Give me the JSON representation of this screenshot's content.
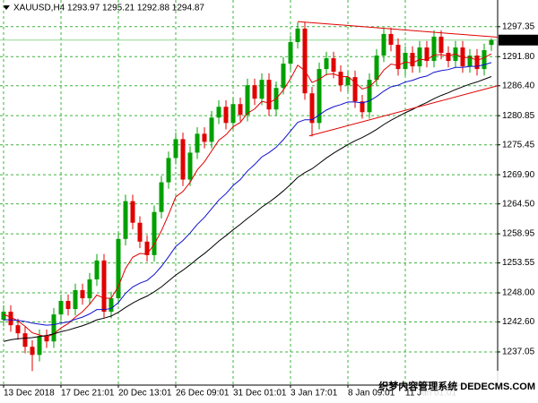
{
  "chart_data": {
    "type": "candlestick",
    "title": "XAUUSD,H4  1293.97 1295.21 1292.88 1294.87",
    "watermark": "织梦内容管理系统 DEDECMS.COM",
    "categories": [
      "13 Dec 2018",
      null,
      null,
      null,
      null,
      null,
      null,
      null,
      "17 Dec 21:01",
      null,
      null,
      null,
      null,
      null,
      null,
      null,
      "20 Dec 13:01",
      null,
      null,
      null,
      null,
      null,
      null,
      null,
      "26 Dec 09:01",
      null,
      null,
      null,
      null,
      null,
      null,
      null,
      "31 Dec 01:01",
      null,
      null,
      null,
      null,
      null,
      null,
      null,
      "3 Jan 17:01",
      null,
      null,
      null,
      null,
      null,
      null,
      null,
      "8 Jan 09:01",
      null,
      null,
      null,
      null,
      null,
      null,
      null,
      "11 Jan 01:01",
      null,
      null,
      null,
      null,
      null,
      null,
      null,
      null,
      null,
      null,
      null,
      null
    ],
    "open": [
      1243.0,
      1244.5,
      1242.0,
      1240.5,
      1238.0,
      1236.5,
      1240.0,
      1239.0,
      1244.0,
      1246.5,
      1245.0,
      1248.5,
      1247.0,
      1250.5,
      1254.0,
      1244.5,
      1247.0,
      1258.0,
      1265.0,
      1261.0,
      1257.5,
      1255.0,
      1263.0,
      1268.5,
      1273.0,
      1276.5,
      1269.0,
      1274.0,
      1277.5,
      1276.0,
      1280.5,
      1282.5,
      1279.5,
      1283.0,
      1281.0,
      1286.5,
      1284.0,
      1287.5,
      1282.0,
      1286.0,
      1290.5,
      1294.5,
      1297.0,
      1285.0,
      1279.5,
      1289.5,
      1291.5,
      1289.0,
      1286.5,
      1288.0,
      1283.5,
      1281.5,
      1287.5,
      1292.0,
      1296.0,
      1294.0,
      1289.5,
      1292.5,
      1290.0,
      1293.5,
      1291.0,
      1295.5,
      1292.5,
      1291.0,
      1293.5,
      1290.0,
      1292.0,
      1289.5,
      1293.97
    ],
    "high": [
      1245.7,
      1245.7,
      1243.2,
      1241.7,
      1239.2,
      1241.2,
      1241.2,
      1245.2,
      1247.7,
      1247.7,
      1249.7,
      1249.7,
      1251.7,
      1255.2,
      1255.2,
      1248.2,
      1259.2,
      1266.2,
      1266.2,
      1262.2,
      1258.7,
      1264.2,
      1269.7,
      1274.2,
      1277.7,
      1277.7,
      1275.2,
      1278.7,
      1278.7,
      1281.7,
      1283.7,
      1283.7,
      1284.2,
      1284.2,
      1287.7,
      1287.7,
      1288.7,
      1288.7,
      1287.2,
      1291.7,
      1295.7,
      1298.2,
      1298.2,
      1286.2,
      1290.7,
      1292.7,
      1292.7,
      1290.2,
      1289.2,
      1289.2,
      1284.7,
      1288.7,
      1293.2,
      1297.2,
      1297.2,
      1295.2,
      1293.7,
      1293.7,
      1294.7,
      1294.7,
      1296.7,
      1296.7,
      1293.7,
      1294.7,
      1294.7,
      1293.2,
      1293.2,
      1294.2,
      1295.21
    ],
    "low": [
      1241.8,
      1240.8,
      1239.3,
      1236.8,
      1233.5,
      1235.3,
      1237.8,
      1237.8,
      1242.8,
      1243.8,
      1243.8,
      1245.8,
      1245.8,
      1249.3,
      1243.3,
      1243.3,
      1245.8,
      1256.8,
      1259.8,
      1256.3,
      1253.8,
      1253.8,
      1261.8,
      1267.3,
      1271.8,
      1267.8,
      1267.8,
      1272.8,
      1274.8,
      1274.8,
      1279.3,
      1278.3,
      1278.3,
      1279.8,
      1279.8,
      1282.8,
      1282.8,
      1280.8,
      1280.8,
      1284.8,
      1289.3,
      1293.3,
      1283.8,
      1277.0,
      1278.3,
      1288.3,
      1287.8,
      1285.3,
      1285.3,
      1282.3,
      1280.3,
      1280.3,
      1286.3,
      1290.8,
      1292.8,
      1288.3,
      1288.3,
      1288.8,
      1288.8,
      1289.8,
      1289.8,
      1291.3,
      1289.8,
      1289.8,
      1288.8,
      1288.8,
      1288.3,
      1288.3,
      1292.88
    ],
    "close": [
      1244.5,
      1242.0,
      1240.5,
      1238.0,
      1236.5,
      1240.0,
      1239.0,
      1244.0,
      1246.5,
      1245.0,
      1248.5,
      1247.0,
      1250.5,
      1254.0,
      1244.5,
      1247.0,
      1258.0,
      1265.0,
      1261.0,
      1257.5,
      1255.0,
      1263.0,
      1268.5,
      1273.0,
      1276.5,
      1269.0,
      1274.0,
      1277.5,
      1276.0,
      1280.5,
      1282.5,
      1279.5,
      1283.0,
      1281.0,
      1286.5,
      1284.0,
      1287.5,
      1282.0,
      1286.0,
      1290.5,
      1294.5,
      1297.0,
      1285.0,
      1279.5,
      1289.5,
      1291.5,
      1289.0,
      1286.5,
      1288.0,
      1283.5,
      1281.5,
      1287.5,
      1292.0,
      1296.0,
      1294.0,
      1289.5,
      1292.5,
      1290.0,
      1293.5,
      1291.0,
      1295.5,
      1292.5,
      1291.0,
      1293.5,
      1290.0,
      1292.0,
      1289.5,
      1293.0,
      1294.87
    ],
    "up_color": "#00a000",
    "down_color": "#e00000",
    "lines": [
      {
        "color": "#e00000",
        "values": [
          1244.0,
          1243.5,
          1242.8,
          1241.8,
          1240.6,
          1240.2,
          1239.8,
          1240.4,
          1241.5,
          1242.3,
          1243.5,
          1244.5,
          1245.9,
          1247.6,
          1247.0,
          1247.0,
          1249.2,
          1252.5,
          1254.6,
          1255.3,
          1255.2,
          1257.0,
          1259.5,
          1262.5,
          1265.8,
          1266.8,
          1268.5,
          1270.8,
          1272.3,
          1274.3,
          1276.3,
          1277.3,
          1278.8,
          1279.6,
          1281.3,
          1282.1,
          1283.5,
          1283.2,
          1284.0,
          1285.6,
          1287.7,
          1290.2,
          1289.2,
          1287.0,
          1287.6,
          1288.5,
          1288.6,
          1288.1,
          1288.1,
          1287.0,
          1285.8,
          1286.2,
          1287.5,
          1289.3,
          1290.4,
          1290.2,
          1290.8,
          1290.6,
          1291.3,
          1291.2,
          1292.1,
          1292.2,
          1291.9,
          1292.3,
          1291.6,
          1291.7,
          1291.1,
          1291.6,
          1292.3
        ]
      },
      {
        "color": "#1010d0",
        "values": [
          1243.0,
          1243.0,
          1242.9,
          1242.7,
          1242.4,
          1242.2,
          1242.0,
          1242.1,
          1242.4,
          1242.6,
          1243.1,
          1243.5,
          1244.1,
          1244.9,
          1244.9,
          1245.1,
          1246.2,
          1247.9,
          1249.1,
          1249.8,
          1250.3,
          1251.4,
          1252.9,
          1254.7,
          1256.6,
          1257.7,
          1259.1,
          1260.7,
          1262.0,
          1263.6,
          1265.2,
          1266.4,
          1267.9,
          1269.0,
          1270.6,
          1271.8,
          1273.2,
          1274.0,
          1275.0,
          1276.4,
          1278.0,
          1279.6,
          1280.1,
          1280.1,
          1281.0,
          1281.9,
          1282.5,
          1282.9,
          1283.4,
          1283.4,
          1283.2,
          1283.6,
          1284.4,
          1285.4,
          1286.2,
          1286.5,
          1287.1,
          1287.4,
          1287.9,
          1288.2,
          1288.9,
          1289.2,
          1289.4,
          1289.8,
          1289.8,
          1290.0,
          1290.0,
          1290.3,
          1290.7
        ]
      },
      {
        "color": "#000000",
        "values": [
          1239.0,
          1239.3,
          1239.5,
          1239.6,
          1239.7,
          1239.9,
          1240.1,
          1240.4,
          1240.8,
          1241.1,
          1241.5,
          1241.9,
          1242.4,
          1243.0,
          1243.3,
          1243.7,
          1244.4,
          1245.3,
          1246.1,
          1246.8,
          1247.4,
          1248.2,
          1249.1,
          1250.2,
          1251.3,
          1252.2,
          1253.2,
          1254.3,
          1255.3,
          1256.4,
          1257.6,
          1258.6,
          1259.7,
          1260.7,
          1261.8,
          1262.8,
          1263.9,
          1264.8,
          1265.8,
          1266.9,
          1268.1,
          1269.4,
          1270.3,
          1271.0,
          1272.0,
          1273.0,
          1273.9,
          1274.7,
          1275.5,
          1276.2,
          1276.8,
          1277.5,
          1278.3,
          1279.2,
          1280.0,
          1280.7,
          1281.4,
          1282.0,
          1282.7,
          1283.3,
          1284.0,
          1284.6,
          1285.1,
          1285.7,
          1286.2,
          1286.7,
          1287.1,
          1287.6,
          1288.1
        ]
      }
    ],
    "trendlines": [
      {
        "color": "#e00000",
        "x": [
          41,
          69
        ],
        "y": [
          1298.3,
          1295.4
        ]
      },
      {
        "color": "#e00000",
        "x": [
          42.6,
          69
        ],
        "y": [
          1277.1,
          1286.4
        ]
      }
    ],
    "ylim": [
      1230.9,
      1302.3
    ],
    "yticks": [
      1297.35,
      {
        "value": 1291.8,
        "label": "1291.80"
      },
      {
        "value": 1286.4,
        "label": "1286.40"
      },
      1280.85,
      1275.45,
      {
        "value": 1269.9,
        "label": "1269.90"
      },
      {
        "value": 1264.5,
        "label": "1264.50"
      },
      1258.95,
      1253.55,
      {
        "value": 1248,
        "label": "1248.00"
      },
      {
        "value": 1242.6,
        "label": "1242.60"
      },
      1237.05
    ],
    "grid": true,
    "grid_color": "#3cb43c"
  }
}
